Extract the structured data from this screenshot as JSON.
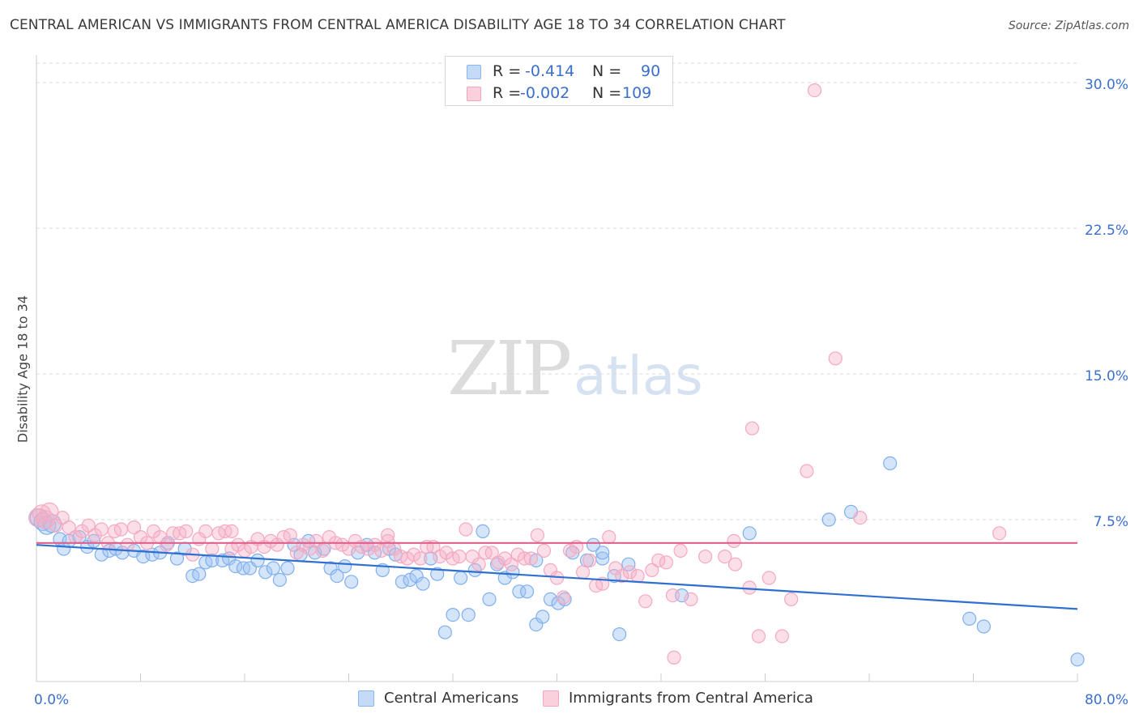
{
  "title": "CENTRAL AMERICAN VS IMMIGRANTS FROM CENTRAL AMERICA DISABILITY AGE 18 TO 34 CORRELATION CHART",
  "source": "Source: ZipAtlas.com",
  "watermark": {
    "zip": "ZIP",
    "atlas": "atlas"
  },
  "legend": {
    "rows": [
      {
        "r_label": "R =",
        "r_value": "-0.414",
        "n_label": "N =",
        "n_value": "90",
        "color": "#a9c8f2"
      },
      {
        "r_label": "R =",
        "r_value": "-0.002",
        "n_label": "N =",
        "n_value": "109",
        "color": "#f6b9cc"
      }
    ]
  },
  "bottom_legend": [
    "Central Americans",
    "Immigrants from Central America"
  ],
  "chart_data": {
    "type": "scatter",
    "title": "CENTRAL AMERICAN VS IMMIGRANTS FROM CENTRAL AMERICA DISABILITY AGE 18 TO 34 CORRELATION CHART",
    "xlabel": "",
    "ylabel": "Disability Age 18 to 34",
    "xlim": [
      0,
      80
    ],
    "ylim": [
      0,
      31
    ],
    "x_tick_labels": [
      "0.0%",
      "80.0%"
    ],
    "y_ticks": [
      7.5,
      15.0,
      22.5,
      30.0
    ],
    "y_tick_labels": [
      "7.5%",
      "15.0%",
      "22.5%",
      "30.0%"
    ],
    "grid": true,
    "legend_position": "top-center",
    "series": [
      {
        "name": "Central Americans",
        "color": "#7fb0ee",
        "trend_color": "#2f6fd0",
        "trend": [
          [
            0,
            6.2
          ],
          [
            80,
            2.9
          ]
        ],
        "points": [
          [
            0.2,
            7.6
          ],
          [
            0.5,
            7.4
          ],
          [
            0.8,
            7.2
          ],
          [
            1.2,
            7.3
          ],
          [
            1.8,
            6.5
          ],
          [
            2.1,
            6.0
          ],
          [
            2.5,
            6.4
          ],
          [
            3.3,
            6.6
          ],
          [
            3.9,
            6.1
          ],
          [
            4.4,
            6.4
          ],
          [
            5.0,
            5.7
          ],
          [
            5.6,
            5.9
          ],
          [
            6.1,
            6.0
          ],
          [
            6.6,
            5.8
          ],
          [
            7.5,
            5.9
          ],
          [
            8.2,
            5.6
          ],
          [
            8.9,
            5.7
          ],
          [
            9.5,
            5.8
          ],
          [
            10.1,
            6.3
          ],
          [
            10.8,
            5.5
          ],
          [
            11.4,
            6.0
          ],
          [
            12.0,
            4.6
          ],
          [
            12.5,
            4.7
          ],
          [
            13.0,
            5.3
          ],
          [
            13.5,
            5.4
          ],
          [
            14.3,
            5.4
          ],
          [
            14.8,
            5.5
          ],
          [
            15.3,
            5.1
          ],
          [
            15.9,
            5.0
          ],
          [
            16.4,
            5.0
          ],
          [
            17.0,
            5.4
          ],
          [
            17.6,
            4.8
          ],
          [
            18.2,
            5.0
          ],
          [
            18.7,
            4.4
          ],
          [
            19.3,
            5.0
          ],
          [
            19.8,
            6.2
          ],
          [
            20.3,
            5.7
          ],
          [
            20.9,
            6.4
          ],
          [
            21.4,
            5.8
          ],
          [
            22.1,
            6.0
          ],
          [
            22.6,
            5.0
          ],
          [
            23.1,
            4.6
          ],
          [
            23.7,
            5.1
          ],
          [
            24.2,
            4.3
          ],
          [
            24.7,
            5.8
          ],
          [
            25.4,
            6.2
          ],
          [
            26.0,
            5.8
          ],
          [
            26.6,
            4.9
          ],
          [
            27.1,
            6.0
          ],
          [
            27.6,
            5.7
          ],
          [
            28.1,
            4.3
          ],
          [
            28.7,
            4.4
          ],
          [
            29.2,
            4.6
          ],
          [
            29.7,
            4.2
          ],
          [
            30.3,
            5.5
          ],
          [
            30.8,
            4.7
          ],
          [
            31.4,
            1.7
          ],
          [
            32.0,
            2.6
          ],
          [
            32.6,
            4.5
          ],
          [
            33.2,
            2.6
          ],
          [
            33.7,
            4.9
          ],
          [
            34.3,
            6.9
          ],
          [
            34.8,
            3.4
          ],
          [
            35.4,
            5.2
          ],
          [
            36.0,
            4.5
          ],
          [
            36.6,
            4.8
          ],
          [
            37.1,
            3.8
          ],
          [
            37.7,
            3.8
          ],
          [
            38.4,
            2.1
          ],
          [
            38.9,
            2.5
          ],
          [
            38.4,
            5.4
          ],
          [
            39.5,
            3.4
          ],
          [
            40.1,
            3.2
          ],
          [
            40.6,
            3.4
          ],
          [
            41.2,
            5.8
          ],
          [
            42.3,
            5.4
          ],
          [
            42.8,
            6.2
          ],
          [
            43.5,
            5.5
          ],
          [
            43.5,
            5.8
          ],
          [
            44.4,
            4.6
          ],
          [
            44.8,
            1.6
          ],
          [
            45.5,
            5.2
          ],
          [
            49.6,
            3.6
          ],
          [
            54.8,
            6.8
          ],
          [
            60.9,
            7.5
          ],
          [
            62.6,
            7.9
          ],
          [
            65.6,
            10.4
          ],
          [
            71.7,
            2.4
          ],
          [
            72.8,
            2.0
          ],
          [
            80.0,
            0.3
          ]
        ]
      },
      {
        "name": "Immigrants from Central America",
        "color": "#f5a8c0",
        "trend_color": "#e0608c",
        "trend": [
          [
            0,
            6.3
          ],
          [
            80,
            6.3
          ]
        ],
        "points": [
          [
            0.1,
            7.6
          ],
          [
            0.4,
            7.8
          ],
          [
            0.7,
            7.5
          ],
          [
            1.0,
            7.9
          ],
          [
            1.5,
            7.2
          ],
          [
            2.0,
            7.6
          ],
          [
            2.5,
            7.1
          ],
          [
            3.0,
            6.6
          ],
          [
            3.5,
            6.9
          ],
          [
            4.0,
            7.2
          ],
          [
            4.5,
            6.7
          ],
          [
            5.0,
            7.0
          ],
          [
            5.5,
            6.3
          ],
          [
            6.0,
            6.9
          ],
          [
            6.5,
            7.0
          ],
          [
            7.0,
            6.2
          ],
          [
            7.5,
            7.1
          ],
          [
            8.0,
            6.6
          ],
          [
            8.5,
            6.3
          ],
          [
            9.0,
            6.9
          ],
          [
            9.5,
            6.6
          ],
          [
            10.0,
            6.2
          ],
          [
            10.5,
            6.8
          ],
          [
            11.0,
            6.8
          ],
          [
            11.5,
            6.9
          ],
          [
            12.0,
            5.7
          ],
          [
            12.5,
            6.5
          ],
          [
            13.0,
            6.9
          ],
          [
            13.5,
            6.0
          ],
          [
            14.0,
            6.8
          ],
          [
            14.5,
            6.9
          ],
          [
            15.0,
            6.0
          ],
          [
            15.5,
            6.2
          ],
          [
            16.0,
            5.9
          ],
          [
            16.5,
            6.1
          ],
          [
            17.0,
            6.5
          ],
          [
            17.5,
            6.1
          ],
          [
            18.0,
            6.4
          ],
          [
            18.5,
            6.2
          ],
          [
            19.0,
            6.6
          ],
          [
            19.5,
            6.7
          ],
          [
            20.0,
            5.8
          ],
          [
            20.5,
            6.2
          ],
          [
            21.0,
            6.0
          ],
          [
            21.5,
            6.4
          ],
          [
            22.0,
            5.9
          ],
          [
            22.5,
            6.6
          ],
          [
            23.0,
            6.3
          ],
          [
            23.5,
            6.2
          ],
          [
            24.0,
            6.0
          ],
          [
            24.5,
            6.4
          ],
          [
            25.0,
            6.1
          ],
          [
            25.5,
            6.0
          ],
          [
            26.0,
            6.2
          ],
          [
            26.5,
            5.9
          ],
          [
            27.0,
            6.7
          ],
          [
            27.5,
            6.0
          ],
          [
            28.0,
            5.6
          ],
          [
            28.5,
            5.5
          ],
          [
            29.0,
            5.7
          ],
          [
            29.5,
            5.5
          ],
          [
            30.0,
            6.1
          ],
          [
            30.5,
            6.1
          ],
          [
            31.0,
            5.6
          ],
          [
            31.5,
            5.8
          ],
          [
            32.0,
            5.5
          ],
          [
            32.5,
            5.6
          ],
          [
            33.0,
            7.0
          ],
          [
            33.5,
            5.6
          ],
          [
            34.0,
            5.2
          ],
          [
            34.5,
            5.8
          ],
          [
            35.0,
            5.8
          ],
          [
            35.5,
            5.3
          ],
          [
            36.0,
            5.5
          ],
          [
            36.5,
            5.2
          ],
          [
            37.0,
            5.7
          ],
          [
            37.5,
            5.5
          ],
          [
            38.0,
            5.5
          ],
          [
            38.5,
            6.7
          ],
          [
            39.0,
            5.9
          ],
          [
            39.5,
            4.9
          ],
          [
            40.0,
            4.5
          ],
          [
            40.5,
            3.5
          ],
          [
            41.0,
            5.9
          ],
          [
            41.5,
            6.1
          ],
          [
            42.0,
            4.8
          ],
          [
            42.5,
            5.4
          ],
          [
            43.0,
            4.1
          ],
          [
            43.5,
            4.2
          ],
          [
            44.0,
            6.6
          ],
          [
            44.5,
            5.0
          ],
          [
            45.0,
            4.6
          ],
          [
            45.6,
            4.8
          ],
          [
            46.2,
            4.6
          ],
          [
            46.8,
            3.3
          ],
          [
            47.3,
            4.9
          ],
          [
            47.8,
            5.4
          ],
          [
            48.4,
            5.3
          ],
          [
            48.9,
            3.6
          ],
          [
            49.5,
            5.9
          ],
          [
            50.3,
            3.4
          ],
          [
            51.4,
            5.6
          ],
          [
            52.9,
            5.6
          ],
          [
            53.6,
            6.4
          ],
          [
            53.7,
            5.2
          ],
          [
            54.8,
            4.0
          ],
          [
            55.0,
            12.2
          ],
          [
            56.3,
            4.5
          ],
          [
            58.0,
            3.4
          ],
          [
            59.2,
            10.0
          ],
          [
            59.8,
            29.6
          ],
          [
            61.4,
            15.8
          ],
          [
            63.3,
            7.6
          ],
          [
            74.0,
            6.8
          ],
          [
            55.5,
            1.5
          ],
          [
            57.3,
            1.5
          ],
          [
            49.0,
            0.4
          ],
          [
            27.0,
            6.4
          ],
          [
            15.0,
            6.9
          ]
        ]
      }
    ]
  }
}
